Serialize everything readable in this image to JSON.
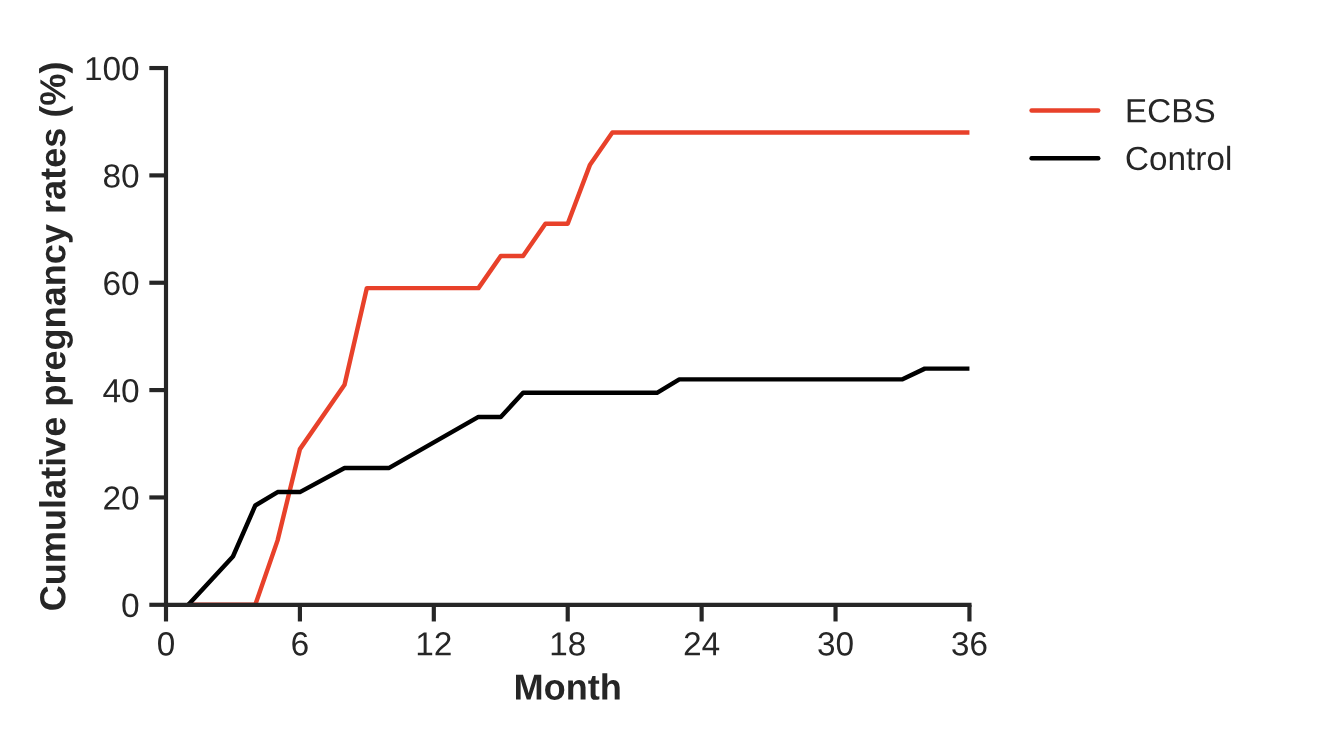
{
  "chart_data": {
    "type": "line",
    "xlabel": "Month",
    "ylabel": "Cumulative pregnancy rates (%)",
    "xlim": [
      0,
      36
    ],
    "xticks": [
      0,
      6,
      12,
      18,
      24,
      30,
      36
    ],
    "ylim": [
      0,
      100
    ],
    "yticks": [
      0,
      20,
      40,
      60,
      80,
      100
    ],
    "grid": false,
    "legend": "top right",
    "marker": "none",
    "line_style": "solid",
    "series": [
      {
        "name": "ECBS",
        "color": "#e8412a",
        "x": [
          1,
          4,
          5,
          6,
          8,
          9,
          14,
          15,
          16,
          17,
          18,
          19,
          20,
          36
        ],
        "values": [
          0,
          0,
          12,
          29,
          41,
          59,
          59,
          65,
          65,
          71,
          71,
          82,
          88,
          88
        ]
      },
      {
        "name": "Control",
        "color": "#000000",
        "x": [
          1,
          3,
          4,
          5,
          6,
          8,
          10,
          14,
          15,
          16,
          22,
          23,
          33,
          34,
          36
        ],
        "values": [
          0,
          9,
          18.5,
          21,
          21,
          25.5,
          25.5,
          35,
          35,
          39.5,
          39.5,
          42,
          42,
          44,
          44
        ]
      }
    ]
  }
}
